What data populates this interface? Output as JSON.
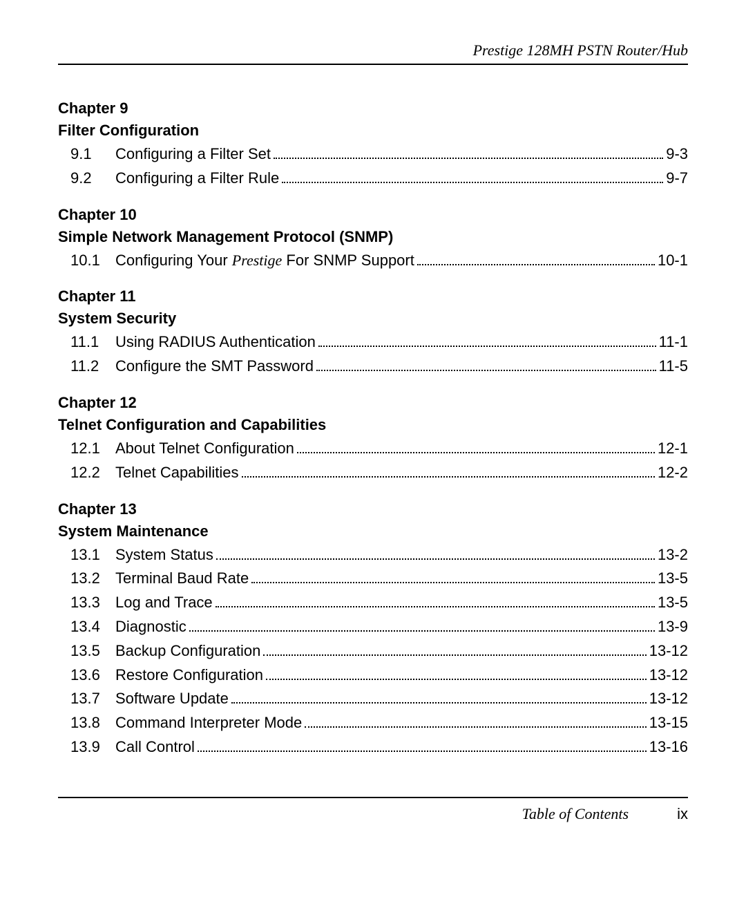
{
  "header": {
    "text": "Prestige 128MH    PSTN Router/Hub"
  },
  "chapters": [
    {
      "label": "Chapter 9",
      "title": "Filter Configuration",
      "entries": [
        {
          "num": "9.1",
          "title": "Configuring a Filter Set",
          "page": "9-3"
        },
        {
          "num": "9.2",
          "title": "Configuring a Filter Rule",
          "page": "9-7"
        }
      ]
    },
    {
      "label": "Chapter 10",
      "title": "Simple Network Management Protocol (SNMP)",
      "entries": [
        {
          "num": "10.1",
          "title_pre": "Configuring Your ",
          "title_italic": "Prestige",
          "title_post": " For SNMP Support",
          "page": "10-1"
        }
      ]
    },
    {
      "label": "Chapter 11",
      "title": "System Security",
      "entries": [
        {
          "num": "11.1",
          "title": "Using RADIUS Authentication",
          "page": "11-1"
        },
        {
          "num": "11.2",
          "title": "Configure the SMT Password",
          "page": "11-5"
        }
      ]
    },
    {
      "label": "Chapter 12",
      "title": "Telnet Configuration and Capabilities",
      "entries": [
        {
          "num": "12.1",
          "title": "About Telnet Configuration",
          "page": "12-1"
        },
        {
          "num": "12.2",
          "title": "Telnet Capabilities",
          "page": "12-2"
        }
      ]
    },
    {
      "label": "Chapter 13",
      "title": "System Maintenance",
      "entries": [
        {
          "num": "13.1",
          "title": "System Status",
          "page": "13-2"
        },
        {
          "num": "13.2",
          "title": "Terminal Baud Rate",
          "page": "13-5"
        },
        {
          "num": "13.3",
          "title": "Log and Trace",
          "page": "13-5"
        },
        {
          "num": "13.4",
          "title": "Diagnostic",
          "page": "13-9"
        },
        {
          "num": "13.5",
          "title": "Backup Configuration",
          "page": "13-12"
        },
        {
          "num": "13.6",
          "title": "Restore Configuration",
          "page": "13-12"
        },
        {
          "num": "13.7",
          "title": "Software Update",
          "page": "13-12"
        },
        {
          "num": "13.8",
          "title": "Command Interpreter Mode",
          "page": "13-15"
        },
        {
          "num": "13.9",
          "title": "Call Control",
          "page": "13-16"
        }
      ]
    }
  ],
  "footer": {
    "title": "Table of Contents",
    "page": "ix"
  }
}
